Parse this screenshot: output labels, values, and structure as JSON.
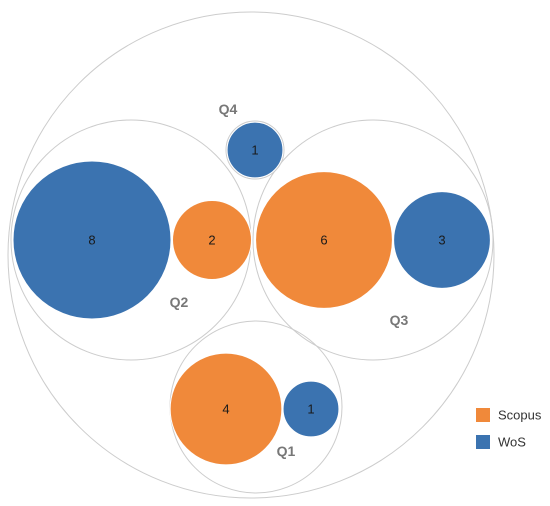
{
  "chart_data": {
    "type": "circle-packing",
    "title": "",
    "colors": {
      "Scopus": "#F0893A",
      "WoS": "#3B73B0"
    },
    "legend": {
      "placement": "bottom-right",
      "entries": [
        "Scopus",
        "WoS"
      ]
    },
    "groups": [
      {
        "name": "Q1",
        "items": [
          {
            "source": "Scopus",
            "value": 4
          },
          {
            "source": "WoS",
            "value": 1
          }
        ]
      },
      {
        "name": "Q2",
        "items": [
          {
            "source": "WoS",
            "value": 8
          },
          {
            "source": "Scopus",
            "value": 2
          }
        ]
      },
      {
        "name": "Q3",
        "items": [
          {
            "source": "Scopus",
            "value": 6
          },
          {
            "source": "WoS",
            "value": 3
          }
        ]
      },
      {
        "name": "Q4",
        "items": [
          {
            "source": "WoS",
            "value": 1
          }
        ]
      }
    ]
  }
}
